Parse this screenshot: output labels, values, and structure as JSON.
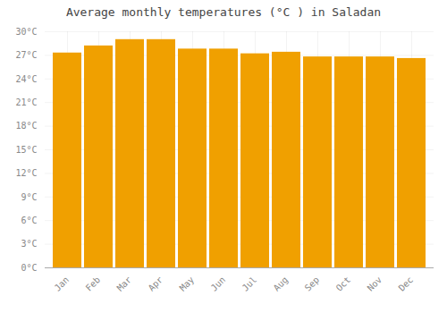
{
  "chart_data": {
    "type": "bar",
    "title": "Average monthly temperatures (°C ) in Saladan",
    "categories": [
      "Jan",
      "Feb",
      "Mar",
      "Apr",
      "May",
      "Jun",
      "Jul",
      "Aug",
      "Sep",
      "Oct",
      "Nov",
      "Dec"
    ],
    "values": [
      27.3,
      28.2,
      29.0,
      29.0,
      27.8,
      27.8,
      27.2,
      27.4,
      26.8,
      26.8,
      26.8,
      26.6
    ],
    "color": "#F0A000",
    "ylim": [
      0,
      30
    ],
    "yticks": [
      {
        "value": 0,
        "label": "0°C"
      },
      {
        "value": 3,
        "label": "3°C"
      },
      {
        "value": 6,
        "label": "6°C"
      },
      {
        "value": 9,
        "label": "9°C"
      },
      {
        "value": 12,
        "label": "12°C"
      },
      {
        "value": 15,
        "label": "15°C"
      },
      {
        "value": 18,
        "label": "18°C"
      },
      {
        "value": 21,
        "label": "21°C"
      },
      {
        "value": 24,
        "label": "24°C"
      },
      {
        "value": 27,
        "label": "27°C"
      },
      {
        "value": 30,
        "label": "30°C"
      }
    ],
    "grid": true
  }
}
